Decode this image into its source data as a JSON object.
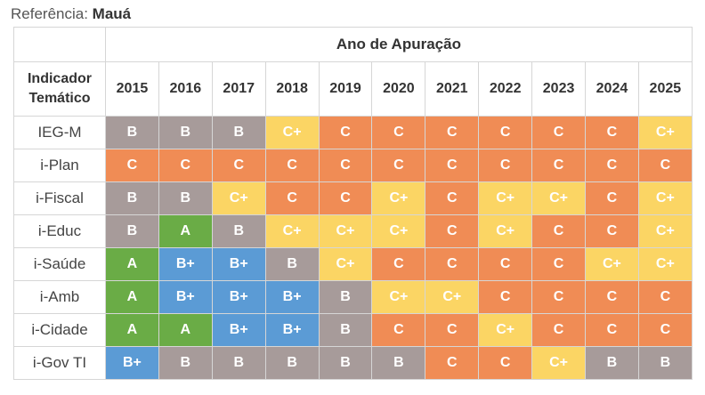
{
  "reference": {
    "label": "Referência:",
    "city": "Mauá"
  },
  "table": {
    "group_header": "Ano de Apuração",
    "indicator_header_line1": "Indicador",
    "indicator_header_line2": "Temático",
    "years": [
      "2015",
      "2016",
      "2017",
      "2018",
      "2019",
      "2020",
      "2021",
      "2022",
      "2023",
      "2024",
      "2025"
    ],
    "rows": [
      {
        "name": "IEG-M",
        "grades": [
          "B",
          "B",
          "B",
          "C+",
          "C",
          "C",
          "C",
          "C",
          "C",
          "C",
          "C+"
        ]
      },
      {
        "name": "i-Plan",
        "grades": [
          "C",
          "C",
          "C",
          "C",
          "C",
          "C",
          "C",
          "C",
          "C",
          "C",
          "C"
        ]
      },
      {
        "name": "i-Fiscal",
        "grades": [
          "B",
          "B",
          "C+",
          "C",
          "C",
          "C+",
          "C",
          "C+",
          "C+",
          "C",
          "C+"
        ]
      },
      {
        "name": "i-Educ",
        "grades": [
          "B",
          "A",
          "B",
          "C+",
          "C+",
          "C+",
          "C",
          "C+",
          "C",
          "C",
          "C+"
        ]
      },
      {
        "name": "i-Saúde",
        "grades": [
          "A",
          "B+",
          "B+",
          "B",
          "C+",
          "C",
          "C",
          "C",
          "C",
          "C+",
          "C+"
        ]
      },
      {
        "name": "i-Amb",
        "grades": [
          "A",
          "B+",
          "B+",
          "B+",
          "B",
          "C+",
          "C+",
          "C",
          "C",
          "C",
          "C"
        ]
      },
      {
        "name": "i-Cidade",
        "grades": [
          "A",
          "A",
          "B+",
          "B+",
          "B",
          "C",
          "C",
          "C+",
          "C",
          "C",
          "C"
        ]
      },
      {
        "name": "i-Gov TI",
        "grades": [
          "B+",
          "B",
          "B",
          "B",
          "B",
          "B",
          "C",
          "C",
          "C+",
          "B",
          "B"
        ]
      }
    ]
  },
  "grade_colors": {
    "A": "#6aac46",
    "B+": "#5b9bd5",
    "B": "#a79b9a",
    "C+": "#fbd564",
    "C": "#f08c55"
  }
}
